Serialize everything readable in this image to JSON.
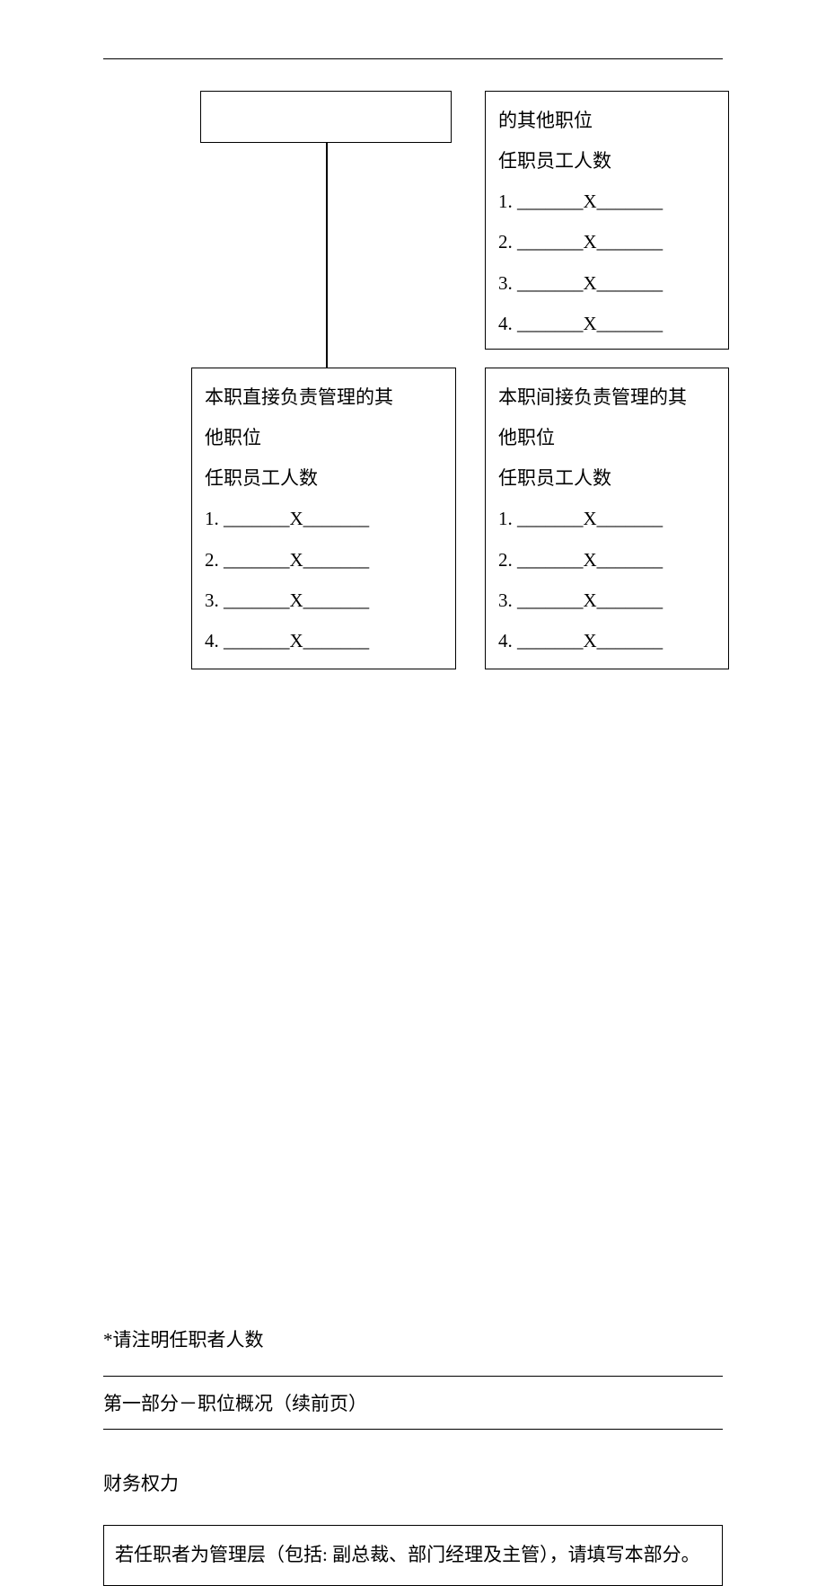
{
  "box_top_right": {
    "line1": "的其他职位",
    "line2": "任职员工人数",
    "items": [
      "1. _______X_______",
      "2. _______X_______",
      "3. _______X_______",
      "4. _______X_______"
    ]
  },
  "box_bottom_left": {
    "line1": "本职直接负责管理的其",
    "line2": "他职位",
    "line3": "任职员工人数",
    "items": [
      "1. _______X_______",
      "2. _______X_______",
      "3. _______X_______",
      "4. _______X_______"
    ]
  },
  "box_bottom_right": {
    "line1": "本职间接负责管理的其",
    "line2": "他职位",
    "line3": "任职员工人数",
    "items": [
      "1. _______X_______",
      "2. _______X_______",
      "3. _______X_______",
      "4. _______X_______"
    ]
  },
  "note_text": "*请注明任职者人数",
  "section_header": "第一部分－职位概况（续前页）",
  "subsection_title": "财务权力",
  "instruction_text": "若任职者为管理层（包括: 副总裁、部门经理及主管），请填写本部分。"
}
